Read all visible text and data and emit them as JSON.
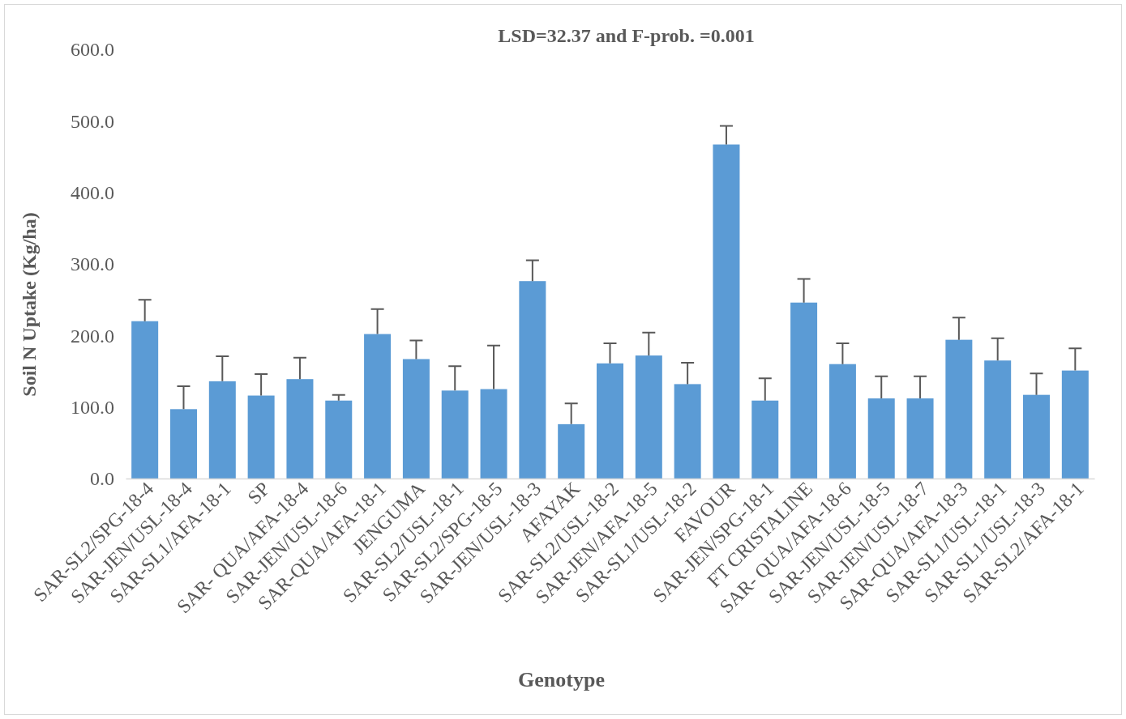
{
  "chart_data": {
    "type": "bar",
    "title": "LSD=32.37 and F-prob. =0.001",
    "xlabel": "Genotype",
    "ylabel": "Soil N Uptake (Kg/ha)",
    "categories": [
      "SAR-SL2/SPG-18-4",
      "SAR-JEN/USL-18-4",
      "SAR-SL1/AFA-18-1",
      "SP",
      "SAR- QUA/AFA-18-4",
      "SAR-JEN/USL-18-6",
      "SAR-QUA/AFA-18-1",
      "JENGUMA",
      "SAR-SL2/USL-18-1",
      "SAR-SL2/SPG-18-5",
      "SAR-JEN/USL-18-3",
      "AFAYAK",
      "SAR-SL2/USL-18-2",
      "SAR-JEN/AFA-18-5",
      "SAR-SL1/USL-18-2",
      "FAVOUR",
      "SAR-JEN/SPG-18-1",
      "FT CRISTALINE",
      "SAR- QUA/AFA-18-6",
      "SAR-JEN/USL-18-5",
      "SAR-JEN/USL-18-7",
      "SAR-QUA/AFA-18-3",
      "SAR-SL1/USL-18-1",
      "SAR-SL1/USL-18-3",
      "SAR-SL2/AFA-18-1"
    ],
    "values": [
      220,
      97,
      136,
      116,
      139,
      109,
      202,
      167,
      123,
      125,
      276,
      76,
      161,
      172,
      132,
      467,
      109,
      246,
      160,
      112,
      112,
      194,
      165,
      117,
      151
    ],
    "errors": [
      30,
      32,
      35,
      30,
      30,
      8,
      35,
      26,
      34,
      61,
      29,
      29,
      28,
      32,
      30,
      26,
      31,
      33,
      29,
      31,
      31,
      31,
      31,
      30,
      31
    ],
    "color": "#5b9bd5",
    "ylim": [
      0,
      600
    ],
    "yticks": [
      {
        "value": 0,
        "label": "0.0"
      },
      {
        "value": 100,
        "label": "100.0"
      },
      {
        "value": 200,
        "label": "200.0"
      },
      {
        "value": 300,
        "label": "300.0"
      },
      {
        "value": 400,
        "label": "400.0"
      },
      {
        "value": 500,
        "label": "500.0"
      },
      {
        "value": 600,
        "label": "600.0"
      }
    ]
  }
}
